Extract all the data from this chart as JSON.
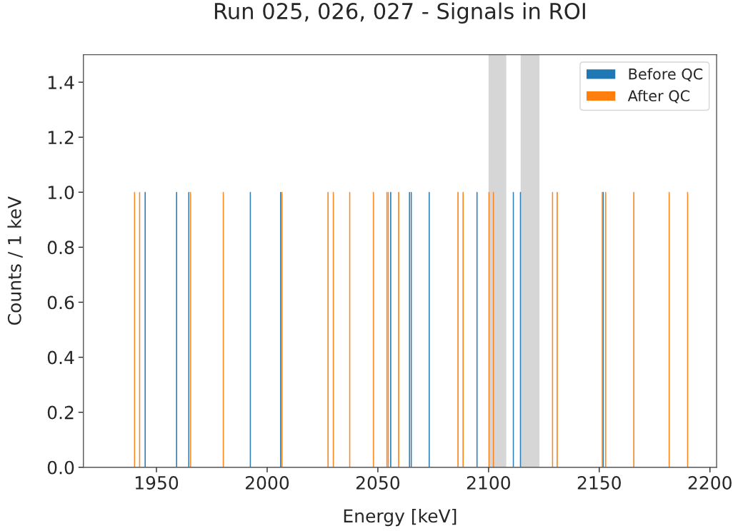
{
  "chart_data": {
    "type": "bar",
    "title": "Run 025, 026, 027 - Signals in ROI",
    "xlabel": "Energy [keV]",
    "ylabel": "Counts / 1 keV",
    "series": [
      {
        "name": "Before QC",
        "color": "#1f77b4",
        "x": [
          1944.9,
          1959.1,
          1964.6,
          1992.4,
          2006.1,
          2055.8,
          2064.3,
          2065.1,
          2073.2,
          2094.8,
          2111.2,
          2114.4,
          2151.8
        ],
        "values": [
          1,
          1,
          1,
          1,
          1,
          1,
          1,
          1,
          1,
          1,
          1,
          1,
          1
        ]
      },
      {
        "name": "After QC",
        "color": "#ff7f0e",
        "x": [
          1940.1,
          1942.4,
          1965.4,
          1980.2,
          2006.7,
          2027.5,
          2029.9,
          2037.3,
          2048.0,
          2054.1,
          2054.7,
          2059.4,
          2086.2,
          2088.5,
          2100.2,
          2102.2,
          2128.9,
          2131.0,
          2151.4,
          2152.9,
          2165.6,
          2181.6,
          2189.9
        ],
        "values": [
          1,
          1,
          1,
          1,
          1,
          1,
          1,
          1,
          1,
          1,
          1,
          1,
          1,
          1,
          1,
          1,
          1,
          1,
          1,
          1,
          1,
          1,
          1
        ]
      }
    ],
    "bands": [
      {
        "axis": "x",
        "from": 2100,
        "to": 2108,
        "color": "#d6d6d6"
      },
      {
        "axis": "x",
        "from": 2114.5,
        "to": 2123,
        "color": "#d6d6d6"
      }
    ],
    "xlim": [
      1917,
      2203
    ],
    "xticks": [
      1950,
      2000,
      2050,
      2100,
      2150,
      2200
    ],
    "ylim": [
      0,
      1.5
    ],
    "yticks": [
      {
        "value": 0,
        "label": "0.0"
      },
      {
        "value": 0.2,
        "label": "0.2"
      },
      {
        "value": 0.4,
        "label": "0.4"
      },
      {
        "value": 0.6,
        "label": "0.6"
      },
      {
        "value": 0.8,
        "label": "0.8"
      },
      {
        "value": 1,
        "label": "1.0"
      },
      {
        "value": 1.2,
        "label": "1.2"
      },
      {
        "value": 1.4,
        "label": "1.4"
      }
    ],
    "legend": "top right",
    "grid": false
  }
}
